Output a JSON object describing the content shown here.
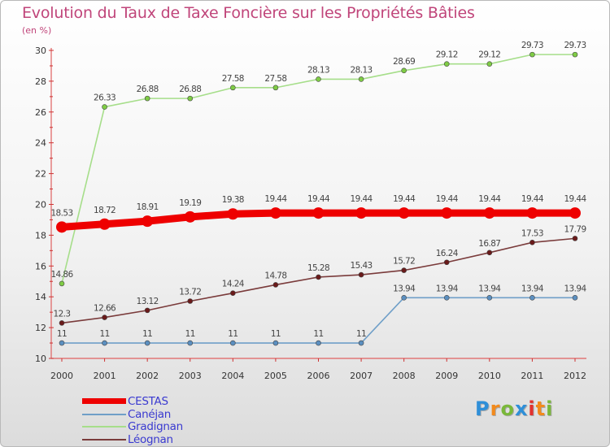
{
  "title": "Evolution du Taux de Taxe Foncière sur les Propriétés Bâties",
  "unit_label": "(en %)",
  "chart_data": {
    "type": "line",
    "title": "Evolution du Taux de Taxe Foncière sur les Propriétés Bâties",
    "ylabel": "(en %)",
    "xlabel": "",
    "x": [
      "2000",
      "2001",
      "2002",
      "2003",
      "2004",
      "2005",
      "2006",
      "2007",
      "2008",
      "2009",
      "2010",
      "2011",
      "2012"
    ],
    "ylim": [
      10,
      30
    ],
    "yticks": [
      10,
      12,
      14,
      16,
      18,
      20,
      22,
      24,
      26,
      28,
      30
    ],
    "grid": false,
    "legend_position": "bottom-left",
    "series": [
      {
        "name": "CESTAS",
        "color": "#ee0000",
        "markerColor": "#ee0000",
        "thick": true,
        "values": [
          18.53,
          18.72,
          18.91,
          19.19,
          19.38,
          19.44,
          19.44,
          19.44,
          19.44,
          19.44,
          19.44,
          19.44,
          19.44
        ],
        "labels": [
          "18.53",
          "18.72",
          "18.91",
          "19.19",
          "19.38",
          "19.44",
          "19.44",
          "19.44",
          "19.44",
          "19.44",
          "19.44",
          "19.44",
          "19.44"
        ]
      },
      {
        "name": "Canéjan",
        "color": "#6f9fc8",
        "markerColor": "#5b8fc0",
        "thick": false,
        "values": [
          11,
          11,
          11,
          11,
          11,
          11,
          11,
          11,
          13.94,
          13.94,
          13.94,
          13.94,
          13.94
        ],
        "labels": [
          "11",
          "11",
          "11",
          "11",
          "11",
          "11",
          "11",
          "11",
          "13.94",
          "13.94",
          "13.94",
          "13.94",
          "13.94"
        ]
      },
      {
        "name": "Gradignan",
        "color": "#a6de8a",
        "markerColor": "#7fcc45",
        "thick": false,
        "values": [
          14.86,
          26.33,
          26.88,
          26.88,
          27.58,
          27.58,
          28.13,
          28.13,
          28.69,
          29.12,
          29.12,
          29.73,
          29.73
        ],
        "labels": [
          "14.86",
          "26.33",
          "26.88",
          "26.88",
          "27.58",
          "27.58",
          "28.13",
          "28.13",
          "28.69",
          "29.12",
          "29.12",
          "29.73",
          "29.73"
        ]
      },
      {
        "name": "Léognan",
        "color": "#7a3b3b",
        "markerColor": "#6a1a1a",
        "thick": false,
        "values": [
          12.3,
          12.66,
          13.12,
          13.72,
          14.24,
          14.78,
          15.28,
          15.43,
          15.72,
          16.24,
          16.87,
          17.53,
          17.79
        ],
        "labels": [
          "12.3",
          "12.66",
          "13.12",
          "13.72",
          "14.24",
          "14.78",
          "15.28",
          "15.43",
          "15.72",
          "16.24",
          "16.87",
          "17.53",
          "17.79"
        ]
      }
    ]
  },
  "logo": {
    "letters": [
      {
        "ch": "P",
        "color": "#2f8fd8"
      },
      {
        "ch": "r",
        "color": "#f28a1c"
      },
      {
        "ch": "o",
        "color": "#7ab83a"
      },
      {
        "ch": "x",
        "color": "#2f8fd8"
      },
      {
        "ch": "i",
        "color": "#e2312e"
      },
      {
        "ch": "t",
        "color": "#f28a1c"
      },
      {
        "ch": "i",
        "color": "#7ab83a"
      }
    ]
  }
}
